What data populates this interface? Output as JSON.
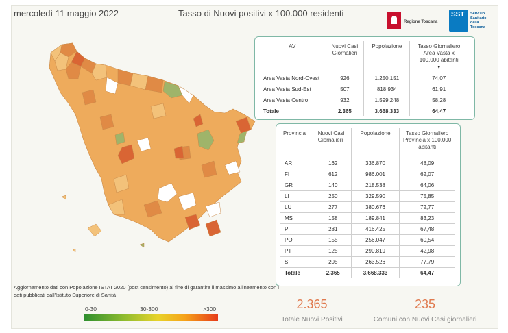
{
  "header": {
    "date": "mercoledì 11 maggio 2022",
    "title": "Tasso di Nuovi positivi x 100.000 residenti"
  },
  "logos": {
    "regione": "Regione Toscana",
    "sst_mark": "SST",
    "sst_text": "Servizio Sanitario della Toscana"
  },
  "area_table": {
    "headers": [
      "AV",
      "Nuovi Casi Giornalieri",
      "Popolazione",
      "Tasso Giornaliero Area Vasta x 100.000 abitanti"
    ],
    "rows": [
      [
        "Area Vasta Nord-Ovest",
        "926",
        "1.250.151",
        "74,07"
      ],
      [
        "Area Vasta Sud-Est",
        "507",
        "818.934",
        "61,91"
      ],
      [
        "Area Vasta Centro",
        "932",
        "1.599.248",
        "58,28"
      ]
    ],
    "total": [
      "Totale",
      "2.365",
      "3.668.333",
      "64,47"
    ]
  },
  "province_table": {
    "headers": [
      "Provincia",
      "Nuovi Casi Giornalieri",
      "Popolazione",
      "Tasso Giornaliero Provincia x 100.000 abitanti"
    ],
    "rows": [
      [
        "AR",
        "162",
        "336.870",
        "48,09"
      ],
      [
        "FI",
        "612",
        "986.001",
        "62,07"
      ],
      [
        "GR",
        "140",
        "218.538",
        "64,06"
      ],
      [
        "LI",
        "250",
        "329.590",
        "75,85"
      ],
      [
        "LU",
        "277",
        "380.676",
        "72,77"
      ],
      [
        "MS",
        "158",
        "189.841",
        "83,23"
      ],
      [
        "PI",
        "281",
        "416.425",
        "67,48"
      ],
      [
        "PO",
        "155",
        "256.047",
        "60,54"
      ],
      [
        "PT",
        "125",
        "290.819",
        "42,98"
      ],
      [
        "SI",
        "205",
        "263.526",
        "77,79"
      ]
    ],
    "total": [
      "Totale",
      "2.365",
      "3.668.333",
      "64,47"
    ]
  },
  "note": "Aggiornamento dati con Popolazione ISTAT 2020 (post censimento) al fine di garantire il massimo allineamento con i dati pubblicati dall'Istituto Superiore di Sanità",
  "legend": {
    "labels": [
      "0-30",
      "30-300",
      ">300"
    ],
    "colors": [
      "#2f8f2f",
      "#e8d32a",
      "#e63b1a"
    ]
  },
  "kpis": {
    "total_value": "2.365",
    "total_label": "Totale Nuovi Positivi",
    "comuni_value": "235",
    "comuni_label": "Comuni con Nuovi Casi giornalieri"
  },
  "map": {
    "region": "Toscana",
    "colors": {
      "base": "#eeab5c",
      "light": "#f3c27a",
      "dark": "#e08a45",
      "hot": "#d96534",
      "green": "#9fb46a",
      "empty": "#ffffff"
    }
  }
}
